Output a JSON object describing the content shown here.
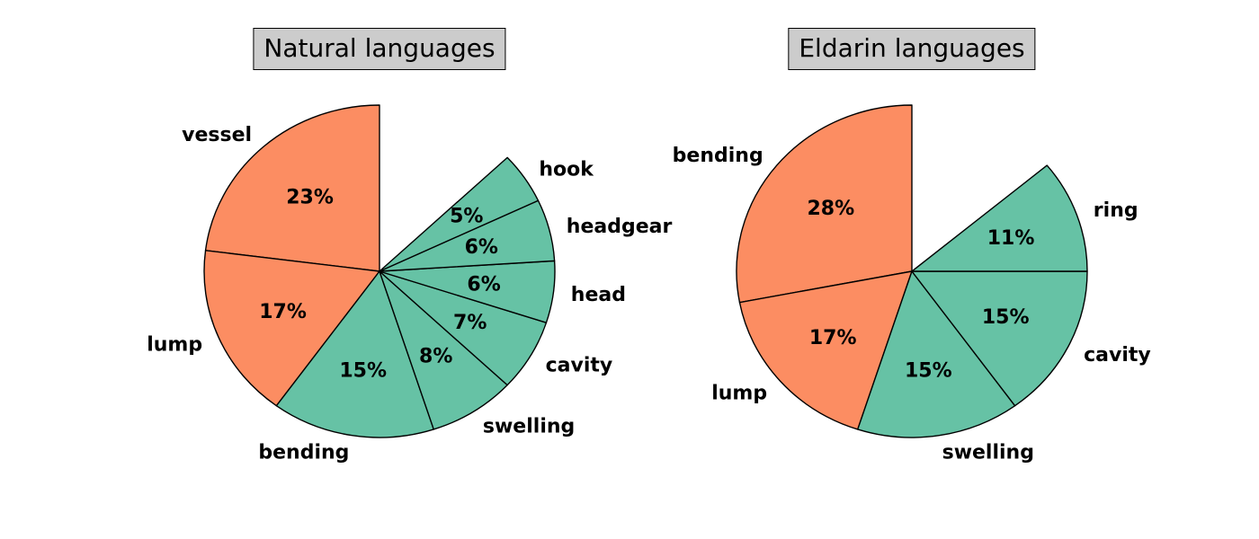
{
  "page": {
    "background_color": "#ffffff"
  },
  "palette": {
    "orange": "#FC8D62",
    "green": "#66C2A5",
    "wedge_edge": "#000000",
    "label_text": "#000000",
    "title_box_bg": "#CCCCCC",
    "title_box_border": "#000000"
  },
  "chart_data": [
    {
      "type": "pie",
      "title": "Natural languages",
      "start_angle_deg": 90,
      "direction": "counterclockwise",
      "label_distance": 1.1,
      "pct_distance": 0.6,
      "categories": [
        "vessel",
        "lump",
        "bending",
        "swelling",
        "cavity",
        "head",
        "headgear",
        "hook"
      ],
      "values": [
        23,
        17,
        15,
        8,
        7,
        6,
        6,
        5
      ],
      "pct_labels": [
        "23%",
        "17%",
        "15%",
        "8%",
        "7%",
        "6%",
        "6%",
        "5%"
      ],
      "slice_colors": [
        "#FC8D62",
        "#FC8D62",
        "#66C2A5",
        "#66C2A5",
        "#66C2A5",
        "#66C2A5",
        "#66C2A5",
        "#66C2A5"
      ],
      "unfilled_gap_pct": 13
    },
    {
      "type": "pie",
      "title": "Eldarin languages",
      "start_angle_deg": 90,
      "direction": "counterclockwise",
      "label_distance": 1.1,
      "pct_distance": 0.6,
      "categories": [
        "bending",
        "lump",
        "swelling",
        "cavity",
        "ring"
      ],
      "values": [
        28,
        17,
        15,
        15,
        11
      ],
      "pct_labels": [
        "28%",
        "17%",
        "15%",
        "15%",
        "11%"
      ],
      "slice_colors": [
        "#FC8D62",
        "#FC8D62",
        "#66C2A5",
        "#66C2A5",
        "#66C2A5"
      ],
      "unfilled_gap_pct": 14
    }
  ]
}
